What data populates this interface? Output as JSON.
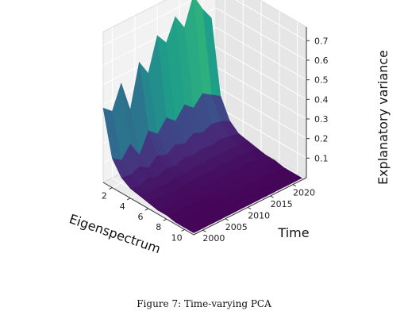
{
  "chart_data": {
    "type": "surface3d",
    "colormap": "viridis",
    "grid": true,
    "xlabel": "Eigenspectrum",
    "ylabel": "Time",
    "zlabel": "Explanatory variance",
    "xticks": [
      "2",
      "4",
      "6",
      "8",
      "10"
    ],
    "yticks": [
      "2000",
      "2005",
      "2010",
      "2015",
      "2020"
    ],
    "zticks": [
      "0.1",
      "0.2",
      "0.3",
      "0.4",
      "0.5",
      "0.6",
      "0.7"
    ],
    "xlim": [
      1,
      11
    ],
    "ylim": [
      1998,
      2023
    ],
    "zlim": [
      0,
      0.77
    ],
    "eigenvalue_index": [
      1,
      2,
      3,
      4,
      5,
      6,
      7,
      8,
      9,
      10,
      11
    ],
    "time": [
      1998,
      2000,
      2002,
      2004,
      2006,
      2008,
      2010,
      2012,
      2014,
      2016,
      2018,
      2020,
      2022
    ],
    "explanatory_variance": [
      [
        0.38,
        0.34,
        0.46,
        0.3,
        0.52,
        0.44,
        0.61,
        0.55,
        0.66,
        0.58,
        0.72,
        0.63,
        0.56
      ],
      [
        0.15,
        0.12,
        0.18,
        0.1,
        0.2,
        0.16,
        0.22,
        0.18,
        0.24,
        0.2,
        0.25,
        0.22,
        0.19
      ],
      [
        0.08,
        0.07,
        0.09,
        0.06,
        0.1,
        0.08,
        0.11,
        0.09,
        0.12,
        0.1,
        0.12,
        0.11,
        0.09
      ],
      [
        0.05,
        0.04,
        0.06,
        0.04,
        0.06,
        0.05,
        0.07,
        0.06,
        0.07,
        0.06,
        0.07,
        0.06,
        0.05
      ],
      [
        0.04,
        0.03,
        0.04,
        0.03,
        0.04,
        0.04,
        0.05,
        0.04,
        0.05,
        0.04,
        0.05,
        0.04,
        0.04
      ],
      [
        0.03,
        0.03,
        0.03,
        0.02,
        0.03,
        0.03,
        0.03,
        0.03,
        0.04,
        0.03,
        0.04,
        0.03,
        0.03
      ],
      [
        0.02,
        0.02,
        0.02,
        0.02,
        0.02,
        0.02,
        0.03,
        0.02,
        0.03,
        0.02,
        0.03,
        0.02,
        0.02
      ],
      [
        0.02,
        0.01,
        0.02,
        0.01,
        0.02,
        0.02,
        0.02,
        0.02,
        0.02,
        0.02,
        0.02,
        0.02,
        0.02
      ],
      [
        0.01,
        0.01,
        0.01,
        0.01,
        0.01,
        0.01,
        0.02,
        0.01,
        0.02,
        0.01,
        0.02,
        0.01,
        0.01
      ],
      [
        0.01,
        0.01,
        0.01,
        0.01,
        0.01,
        0.01,
        0.01,
        0.01,
        0.01,
        0.01,
        0.01,
        0.01,
        0.01
      ],
      [
        0.01,
        0.01,
        0.01,
        0.01,
        0.01,
        0.01,
        0.01,
        0.01,
        0.01,
        0.01,
        0.01,
        0.01,
        0.01
      ]
    ]
  },
  "caption": "Figure 7: Time-varying PCA"
}
